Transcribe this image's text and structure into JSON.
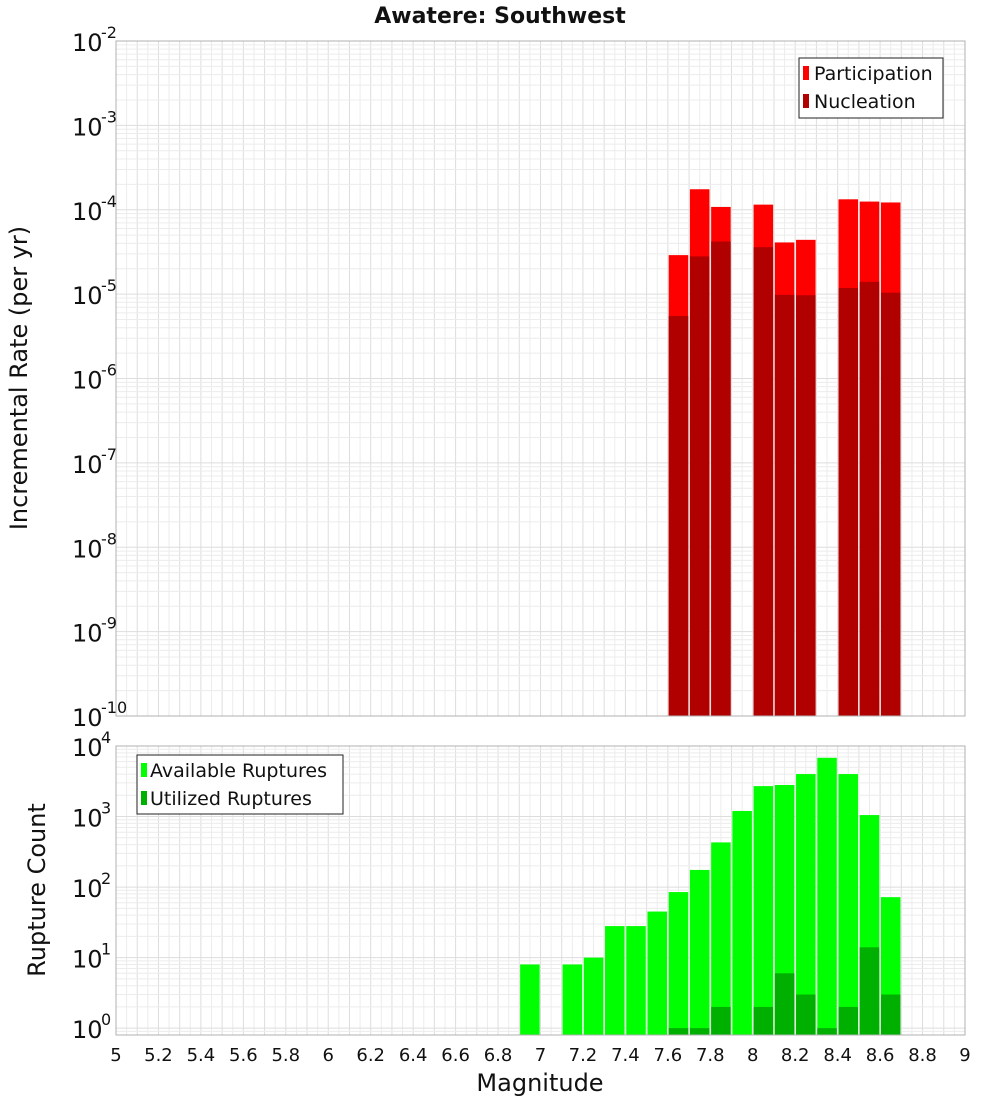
{
  "chart_data": [
    {
      "type": "bar",
      "title": "Awatere: Southwest",
      "xlabel": "",
      "ylabel": "Incremental Rate (per yr)",
      "yscale": "log",
      "ylim": [
        1e-10,
        0.01
      ],
      "xlim": [
        5,
        9
      ],
      "x": [
        7.65,
        7.75,
        7.85,
        8.05,
        8.15,
        8.25,
        8.45,
        8.55,
        8.65
      ],
      "series": [
        {
          "name": "Participation",
          "color": "#ff0000",
          "values": [
            2.9e-05,
            0.000175,
            0.000108,
            0.000115,
            4.1e-05,
            4.4e-05,
            0.000133,
            0.000125,
            0.000122
          ]
        },
        {
          "name": "Nucleation",
          "color": "#b00000",
          "values": [
            5.5e-06,
            2.8e-05,
            4.2e-05,
            3.6e-05,
            9.8e-06,
            9.7e-06,
            1.18e-05,
            1.4e-05,
            1.04e-05
          ]
        }
      ],
      "y_ticks": [
        {
          "base": "10",
          "exp": "-10"
        },
        {
          "base": "10",
          "exp": "-9"
        },
        {
          "base": "10",
          "exp": "-8"
        },
        {
          "base": "10",
          "exp": "-7"
        },
        {
          "base": "10",
          "exp": "-6"
        },
        {
          "base": "10",
          "exp": "-5"
        },
        {
          "base": "10",
          "exp": "-4"
        },
        {
          "base": "10",
          "exp": "-3"
        },
        {
          "base": "10",
          "exp": "-2"
        }
      ],
      "legend": {
        "position": "top-right",
        "entries": [
          "Participation",
          "Nucleation"
        ]
      }
    },
    {
      "type": "bar",
      "title": "",
      "xlabel": "Magnitude",
      "ylabel": "Rupture Count",
      "yscale": "log",
      "ylim": [
        0.8,
        10000
      ],
      "xlim": [
        5,
        9
      ],
      "x": [
        6.95,
        7.15,
        7.25,
        7.35,
        7.45,
        7.55,
        7.65,
        7.75,
        7.85,
        7.95,
        8.05,
        8.15,
        8.25,
        8.35,
        8.45,
        8.55,
        8.65
      ],
      "series": [
        {
          "name": "Available Ruptures",
          "color": "#00ff00",
          "values": [
            8,
            8,
            10,
            28,
            28,
            45,
            85,
            175,
            430,
            1200,
            2700,
            2800,
            4000,
            6800,
            4000,
            1050,
            72
          ]
        },
        {
          "name": "Utilized Ruptures",
          "color": "#00b000",
          "values": [
            0,
            0,
            0,
            0,
            0,
            0,
            1,
            1,
            2,
            0,
            2,
            6,
            3,
            1,
            2,
            14,
            3
          ]
        }
      ],
      "y_ticks": [
        {
          "base": "10",
          "exp": "0"
        },
        {
          "base": "10",
          "exp": "1"
        },
        {
          "base": "10",
          "exp": "2"
        },
        {
          "base": "10",
          "exp": "3"
        },
        {
          "base": "10",
          "exp": "4"
        }
      ],
      "x_ticks": [
        "5",
        "5.2",
        "5.4",
        "5.6",
        "5.8",
        "6",
        "6.2",
        "6.4",
        "6.6",
        "6.8",
        "7",
        "7.2",
        "7.4",
        "7.6",
        "7.8",
        "8",
        "8.2",
        "8.4",
        "8.6",
        "8.8",
        "9"
      ],
      "legend": {
        "position": "top-left",
        "entries": [
          "Available Ruptures",
          "Utilized Ruptures"
        ]
      }
    }
  ]
}
